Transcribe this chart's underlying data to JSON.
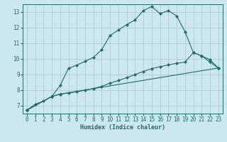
{
  "xlabel": "Humidex (Indice chaleur)",
  "xlim": [
    -0.5,
    23.5
  ],
  "ylim": [
    6.5,
    13.5
  ],
  "yticks": [
    7,
    8,
    9,
    10,
    11,
    12,
    13
  ],
  "xticks": [
    0,
    1,
    2,
    3,
    4,
    5,
    6,
    7,
    8,
    9,
    10,
    11,
    12,
    13,
    14,
    15,
    16,
    17,
    18,
    19,
    20,
    21,
    22,
    23
  ],
  "bg_color": "#cce8ee",
  "grid_color": "#aacdd6",
  "line_color": "#1e6e64",
  "line1_x": [
    0,
    1,
    2,
    3,
    4,
    5,
    6,
    7,
    8,
    9,
    10,
    11,
    12,
    13,
    14,
    15,
    16,
    17,
    18,
    19,
    20,
    21,
    22,
    23
  ],
  "line1_y": [
    6.72,
    7.1,
    7.3,
    7.6,
    8.3,
    9.4,
    9.6,
    9.85,
    10.1,
    10.6,
    11.5,
    11.85,
    12.2,
    12.5,
    13.1,
    13.35,
    12.9,
    13.1,
    12.75,
    11.75,
    10.4,
    10.2,
    9.8,
    9.42
  ],
  "line2_x": [
    0,
    3,
    4,
    5,
    6,
    7,
    8,
    9,
    10,
    11,
    12,
    13,
    14,
    15,
    16,
    17,
    18,
    19,
    20,
    21,
    22,
    23
  ],
  "line2_y": [
    6.72,
    7.6,
    7.75,
    7.82,
    7.9,
    8.0,
    8.1,
    8.25,
    8.45,
    8.62,
    8.8,
    9.0,
    9.2,
    9.38,
    9.5,
    9.62,
    9.72,
    9.8,
    10.4,
    10.2,
    9.95,
    9.42
  ],
  "line3_x": [
    0,
    3,
    4,
    23
  ],
  "line3_y": [
    6.72,
    7.6,
    7.75,
    9.42
  ]
}
